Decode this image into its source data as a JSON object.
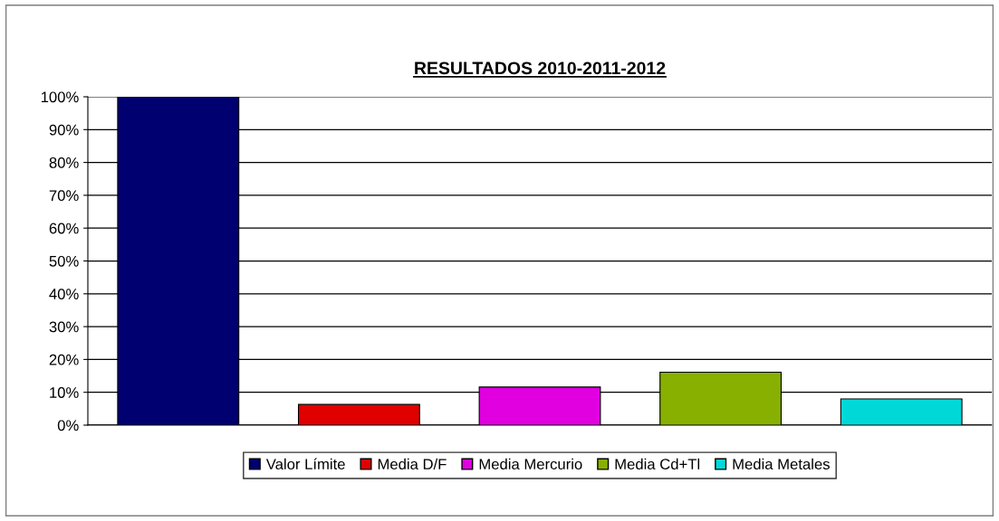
{
  "chart_data": {
    "type": "bar",
    "title": "RESULTADOS 2010-2011-2012",
    "categories": [
      null,
      null,
      null,
      null,
      null
    ],
    "series": [
      {
        "name": "Valor Límite",
        "color": "#000070",
        "values": [
          100,
          null,
          null,
          null,
          null
        ]
      },
      {
        "name": "Media D/F",
        "color": "#e00000",
        "values": [
          null,
          6.3,
          null,
          null,
          null
        ]
      },
      {
        "name": "Media Mercurio",
        "color": "#e000e0",
        "values": [
          null,
          null,
          11.6,
          null,
          null
        ]
      },
      {
        "name": "Media Cd+Tl",
        "color": "#88b000",
        "values": [
          null,
          null,
          null,
          16.1,
          null
        ]
      },
      {
        "name": "Media Metales",
        "color": "#00d8d8",
        "values": [
          null,
          null,
          null,
          null,
          8.0
        ]
      }
    ],
    "ylim": [
      0,
      100
    ],
    "yticks": [
      {
        "value": 0,
        "label": "0%"
      },
      {
        "value": 10,
        "label": "10%"
      },
      {
        "value": 20,
        "label": "20%"
      },
      {
        "value": 30,
        "label": "30%"
      },
      {
        "value": 40,
        "label": "40%"
      },
      {
        "value": 50,
        "label": "50%"
      },
      {
        "value": 60,
        "label": "60%"
      },
      {
        "value": 70,
        "label": "70%"
      },
      {
        "value": 80,
        "label": "80%"
      },
      {
        "value": 90,
        "label": "90%"
      },
      {
        "value": 100,
        "label": "100%"
      }
    ],
    "grid": "y",
    "legend": "bottom"
  }
}
